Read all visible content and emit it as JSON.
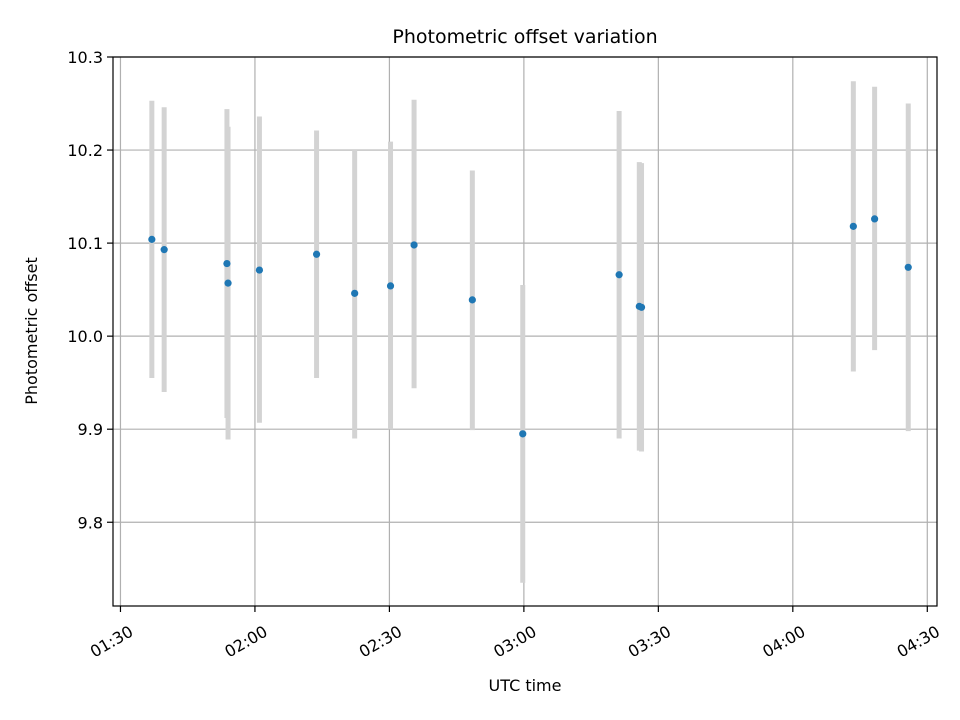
{
  "chart_data": {
    "type": "scatter",
    "title": "Photometric offset variation",
    "xlabel": "UTC time",
    "ylabel": "Photometric offset",
    "xlim": [
      "01:28:20",
      "04:32:10"
    ],
    "ylim": [
      9.71,
      10.3
    ],
    "grid": true,
    "x_ticks": [
      "01:30",
      "02:00",
      "02:30",
      "03:00",
      "03:30",
      "04:00",
      "04:30"
    ],
    "y_ticks": [
      "9.8",
      "9.9",
      "10.0",
      "10.1",
      "10.2",
      "10.3"
    ],
    "point_color": "#1f77b4",
    "errorbar_color": "#d3d3d3",
    "series": [
      {
        "values": [
          {
            "x": "01:37:00",
            "y": 10.104,
            "ylo": 9.955,
            "yhi": 10.253
          },
          {
            "x": "01:39:45",
            "y": 10.093,
            "ylo": 9.94,
            "yhi": 10.246
          },
          {
            "x": "01:53:45",
            "y": 10.078,
            "ylo": 9.912,
            "yhi": 10.244
          },
          {
            "x": "01:54:00",
            "y": 10.057,
            "ylo": 9.889,
            "yhi": 10.225
          },
          {
            "x": "02:01:00",
            "y": 10.071,
            "ylo": 9.907,
            "yhi": 10.236
          },
          {
            "x": "02:13:45",
            "y": 10.088,
            "ylo": 9.955,
            "yhi": 10.221
          },
          {
            "x": "02:22:15",
            "y": 10.046,
            "ylo": 9.89,
            "yhi": 10.2
          },
          {
            "x": "02:30:15",
            "y": 10.054,
            "ylo": 9.9,
            "yhi": 10.209
          },
          {
            "x": "02:35:30",
            "y": 10.098,
            "ylo": 9.944,
            "yhi": 10.254
          },
          {
            "x": "02:48:30",
            "y": 10.039,
            "ylo": 9.899,
            "yhi": 10.178
          },
          {
            "x": "02:59:45",
            "y": 9.895,
            "ylo": 9.735,
            "yhi": 10.055
          },
          {
            "x": "03:21:15",
            "y": 10.066,
            "ylo": 9.89,
            "yhi": 10.242
          },
          {
            "x": "03:25:45",
            "y": 10.032,
            "ylo": 9.877,
            "yhi": 10.187
          },
          {
            "x": "03:26:15",
            "y": 10.031,
            "ylo": 9.876,
            "yhi": 10.186
          },
          {
            "x": "04:13:30",
            "y": 10.118,
            "ylo": 9.962,
            "yhi": 10.274
          },
          {
            "x": "04:18:15",
            "y": 10.126,
            "ylo": 9.985,
            "yhi": 10.268
          },
          {
            "x": "04:25:45",
            "y": 10.074,
            "ylo": 9.898,
            "yhi": 10.25
          }
        ]
      }
    ]
  }
}
